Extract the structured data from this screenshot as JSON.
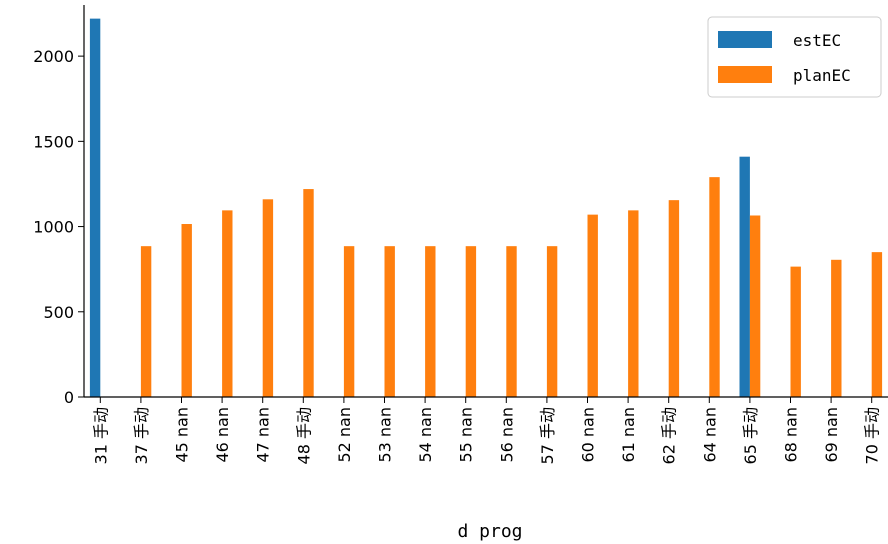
{
  "chart_data": {
    "type": "bar",
    "xlabel": "d prog",
    "ylabel": "",
    "ylim": [
      0,
      2300
    ],
    "yticks": [
      0,
      500,
      1000,
      1500,
      2000
    ],
    "categories": [
      "31 手动",
      "37 手动",
      "45 nan",
      "46 nan",
      "47 nan",
      "48 手动",
      "52 nan",
      "53 nan",
      "54 nan",
      "55 nan",
      "56 nan",
      "57 手动",
      "60 nan",
      "61 nan",
      "62 手动",
      "64 nan",
      "65 手动",
      "68 nan",
      "69 nan",
      "70 手动"
    ],
    "series": [
      {
        "name": "estEC",
        "color": "#1f77b4",
        "values": [
          2220,
          null,
          null,
          null,
          null,
          null,
          null,
          null,
          null,
          null,
          null,
          null,
          null,
          null,
          null,
          null,
          1410,
          null,
          null,
          null
        ]
      },
      {
        "name": "planEC",
        "color": "#ff7f0e",
        "values": [
          null,
          885,
          1015,
          1095,
          1160,
          1220,
          885,
          885,
          885,
          885,
          885,
          885,
          1070,
          1095,
          1155,
          1290,
          1065,
          765,
          805,
          850
        ]
      }
    ],
    "legend_position": "top-right",
    "grid": false
  }
}
